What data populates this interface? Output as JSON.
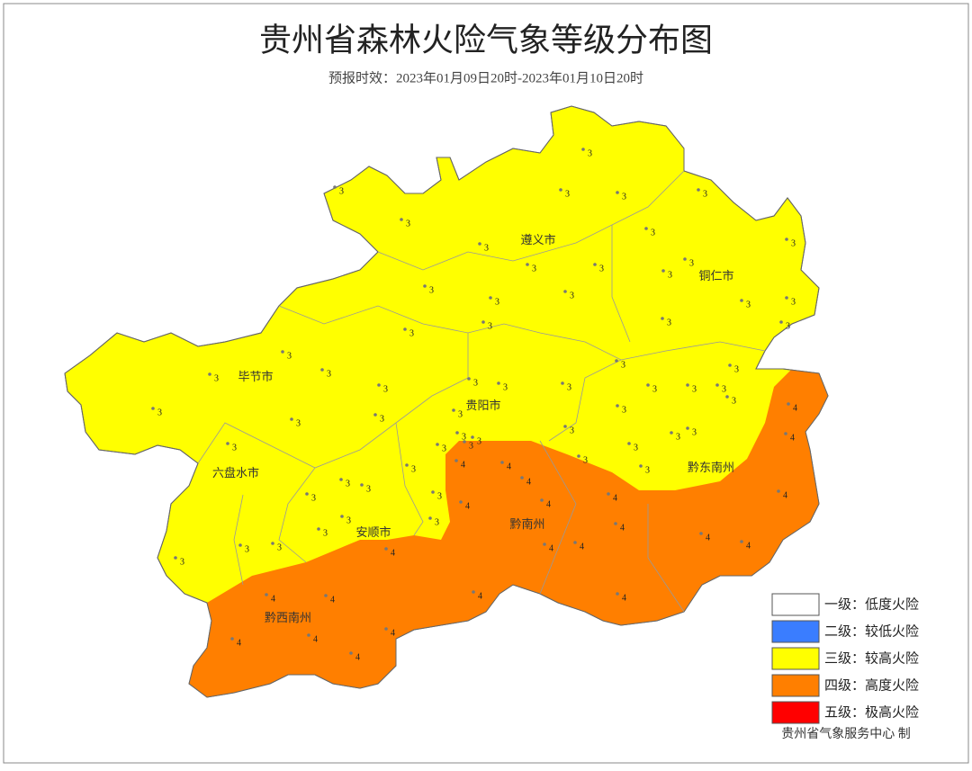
{
  "title": "贵州省森林火险气象等级分布图",
  "subtitle": "预报时效：2023年01月09日20时-2023年01月10日20时",
  "cities": [
    "遵义市",
    "铜仁市",
    "毕节市",
    "贵阳市",
    "六盘水市",
    "安顺市",
    "黔南州",
    "黔东南州",
    "黔西南州"
  ],
  "stations": [
    3,
    3,
    3,
    3,
    3,
    3,
    3,
    3,
    3,
    3,
    3,
    3,
    3,
    3,
    3,
    3,
    3,
    3,
    3,
    3,
    3,
    3,
    3,
    3,
    3,
    3,
    3,
    3,
    3,
    3,
    3,
    3,
    3,
    3,
    3,
    3,
    3,
    3,
    3,
    3,
    3,
    3,
    3,
    3,
    3,
    3,
    3,
    3,
    3,
    3,
    3,
    3,
    3,
    3,
    3,
    3,
    3,
    3,
    3,
    3,
    3,
    3,
    4,
    4,
    4,
    4,
    4,
    4,
    4,
    4,
    4,
    4,
    4,
    4,
    4,
    4,
    4,
    4,
    4,
    4,
    4,
    4,
    4,
    4,
    4
  ],
  "legend": [
    {
      "label": "一级：低度火险",
      "color": "#ffffff"
    },
    {
      "label": "二级：较低火险",
      "color": "#3a7dff"
    },
    {
      "label": "三级：较高火险",
      "color": "#ffff00"
    },
    {
      "label": "四级：高度火险",
      "color": "#ff7f00"
    },
    {
      "label": "五级：极高火险",
      "color": "#ff0000"
    }
  ],
  "credit": "贵州省气象服务中心 制"
}
